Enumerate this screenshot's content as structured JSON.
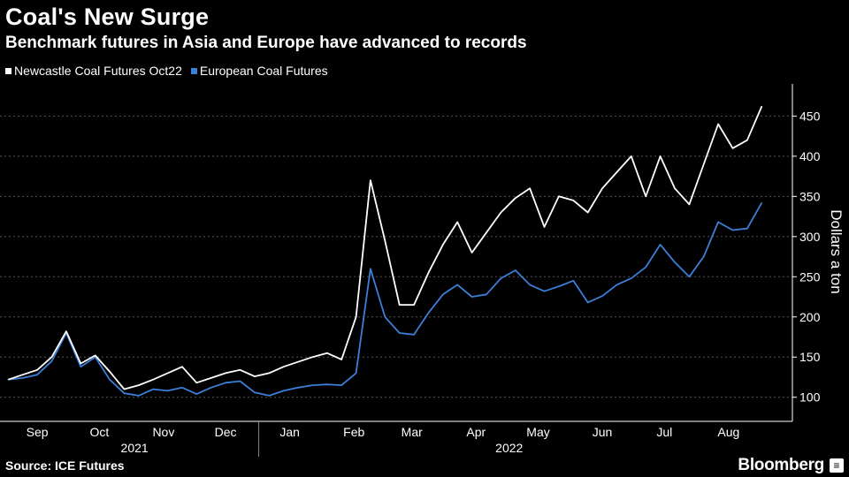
{
  "title": "Coal's New Surge",
  "subtitle": "Benchmark futures in Asia and Europe have advanced to records",
  "source": "Source: ICE Futures",
  "brand": "Bloomberg",
  "colors": {
    "background": "#000000",
    "newcastle": "#ffffff",
    "european": "#3b7fd8",
    "grid": "#555555"
  },
  "chart_data": {
    "type": "line",
    "title": "Coal's New Surge",
    "subtitle": "Benchmark futures in Asia and Europe have advanced to records",
    "xlabel": "",
    "ylabel": "Dollars a ton",
    "ylim": [
      70,
      490
    ],
    "yticks": [
      100,
      150,
      200,
      250,
      300,
      350,
      400,
      450
    ],
    "x_month_labels": [
      "Sep",
      "Oct",
      "Nov",
      "Dec",
      "Jan",
      "Feb",
      "Mar",
      "Apr",
      "May",
      "Jun",
      "Jul",
      "Aug"
    ],
    "x_year_labels": [
      "2021",
      "2022"
    ],
    "legend_position": "top-left",
    "grid": true,
    "x": [
      "2021-09-01",
      "2021-09-08",
      "2021-09-15",
      "2021-09-22",
      "2021-09-29",
      "2021-10-06",
      "2021-10-13",
      "2021-10-20",
      "2021-10-27",
      "2021-11-03",
      "2021-11-10",
      "2021-11-17",
      "2021-11-24",
      "2021-12-01",
      "2021-12-08",
      "2021-12-15",
      "2021-12-22",
      "2021-12-29",
      "2022-01-05",
      "2022-01-12",
      "2022-01-19",
      "2022-01-26",
      "2022-02-02",
      "2022-02-09",
      "2022-02-16",
      "2022-02-23",
      "2022-03-02",
      "2022-03-09",
      "2022-03-16",
      "2022-03-23",
      "2022-03-30",
      "2022-04-06",
      "2022-04-13",
      "2022-04-20",
      "2022-04-27",
      "2022-05-04",
      "2022-05-11",
      "2022-05-18",
      "2022-05-25",
      "2022-06-01",
      "2022-06-08",
      "2022-06-15",
      "2022-06-22",
      "2022-06-29",
      "2022-07-06",
      "2022-07-13",
      "2022-07-20",
      "2022-07-27",
      "2022-08-03",
      "2022-08-10",
      "2022-08-17",
      "2022-08-24",
      "2022-08-31"
    ],
    "series": [
      {
        "name": "Newcastle Coal Futures Oct22",
        "color": "#ffffff",
        "values": [
          122,
          128,
          134,
          150,
          182,
          142,
          152,
          132,
          110,
          115,
          122,
          130,
          138,
          118,
          124,
          130,
          134,
          126,
          130,
          138,
          144,
          150,
          155,
          147,
          200,
          370,
          295,
          215,
          215,
          255,
          290,
          318,
          280,
          305,
          330,
          348,
          360,
          312,
          350,
          345,
          330,
          360,
          380,
          400,
          350,
          400,
          360,
          340,
          390,
          440,
          410,
          420,
          462
        ]
      },
      {
        "name": "European Coal Futures",
        "color": "#3b7fd8",
        "values": [
          122,
          124,
          128,
          145,
          180,
          138,
          150,
          122,
          105,
          102,
          110,
          108,
          112,
          104,
          112,
          118,
          120,
          106,
          102,
          108,
          112,
          115,
          116,
          115,
          130,
          260,
          200,
          180,
          178,
          205,
          228,
          240,
          225,
          228,
          248,
          258,
          240,
          232,
          238,
          245,
          218,
          226,
          240,
          248,
          262,
          290,
          268,
          250,
          275,
          318,
          308,
          310,
          342
        ]
      }
    ]
  }
}
